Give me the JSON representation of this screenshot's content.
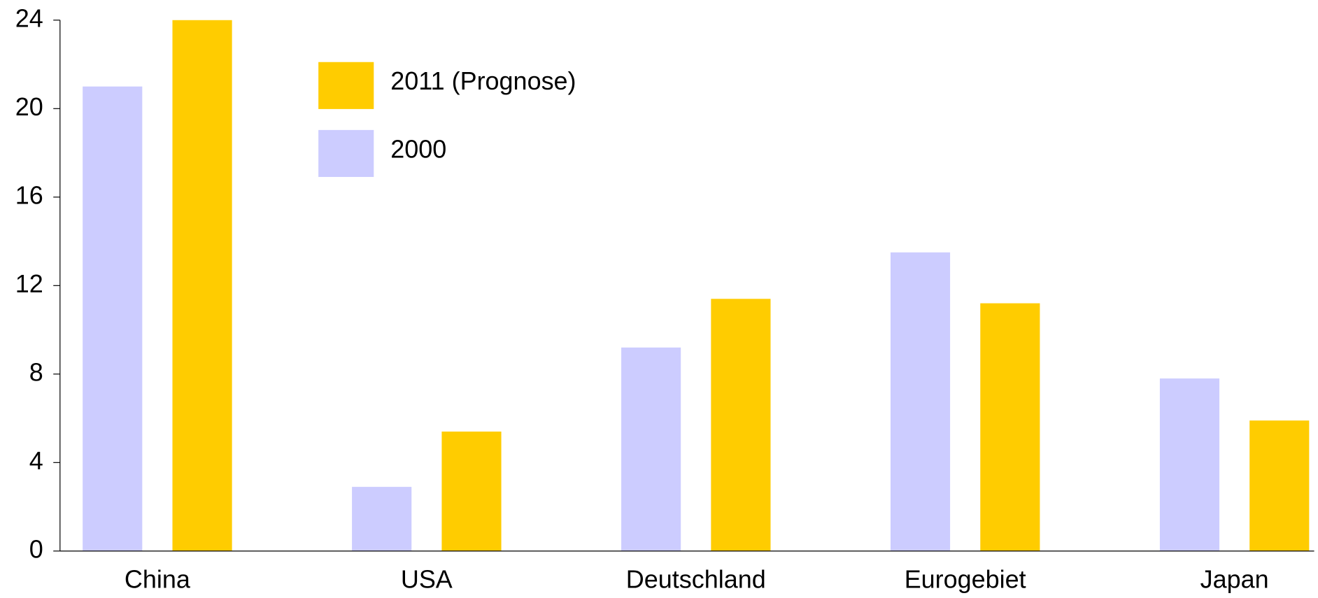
{
  "chart_data": {
    "type": "bar",
    "categories": [
      "China",
      "USA",
      "Deutschland",
      "Eurogebiet",
      "Japan"
    ],
    "series": [
      {
        "name": "2000",
        "color": "#ccccff",
        "values": [
          21,
          2.9,
          9.2,
          13.5,
          7.8
        ]
      },
      {
        "name": "2011 (Prognose)",
        "color": "#ffcc00",
        "values": [
          24,
          5.4,
          11.4,
          11.2,
          5.9
        ]
      }
    ],
    "ylim": [
      0,
      24
    ],
    "yticks": [
      0,
      4,
      8,
      12,
      16,
      20,
      24
    ],
    "grid": false
  }
}
